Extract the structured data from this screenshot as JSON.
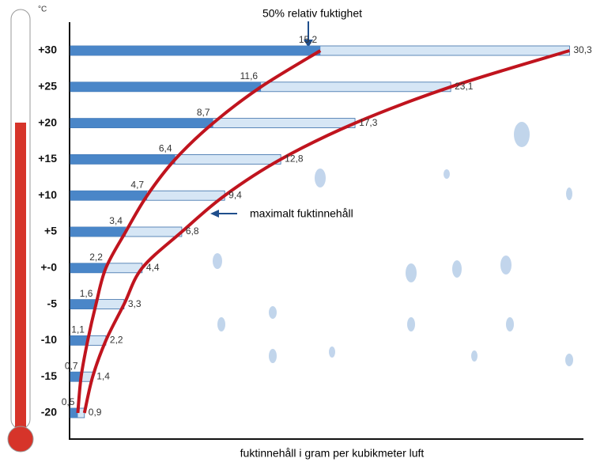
{
  "chart_data": {
    "type": "hbar-curve",
    "unit": "°C",
    "xlabel": "fuktinnehåll i gram per kubikmeter luft",
    "categories": [
      "+30",
      "+25",
      "+20",
      "+15",
      "+10",
      "+5",
      "+-0",
      "-5",
      "-10",
      "-15",
      "-20"
    ],
    "xlim": [
      0,
      31
    ],
    "series": [
      {
        "name": "50% relativ fuktighet",
        "color": "#4a86c8",
        "values": [
          15.2,
          11.6,
          8.7,
          6.4,
          4.7,
          3.4,
          2.2,
          1.6,
          1.1,
          0.7,
          0.5
        ],
        "value_labels": [
          "15,2",
          "11,6",
          "8,7",
          "6,4",
          "4,7",
          "3,4",
          "2,2",
          "1,6",
          "1,1",
          "0,7",
          "0,5"
        ]
      },
      {
        "name": "maximalt fuktinnehåll",
        "color": "#d6e6f5",
        "values": [
          30.3,
          23.1,
          17.3,
          12.8,
          9.4,
          6.8,
          4.4,
          3.3,
          2.2,
          1.4,
          0.9
        ],
        "value_labels": [
          "30,3",
          "23,1",
          "17,3",
          "12,8",
          "9,4",
          "6,8",
          "4,4",
          "3,3",
          "2,2",
          "1,4",
          "0,9"
        ]
      }
    ],
    "curve_color": "#c0141e"
  }
}
